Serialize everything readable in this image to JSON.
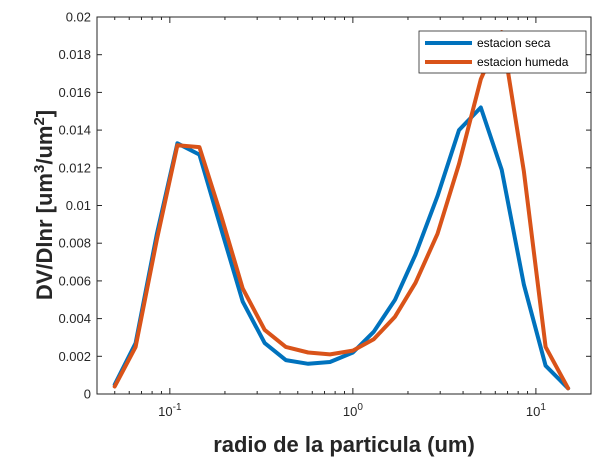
{
  "chart_data": {
    "type": "line",
    "title": "",
    "xlabel": "radio de la particula (um)",
    "ylabel_main": "DV/Dlnr [um",
    "ylabel_sup1": "3",
    "ylabel_mid": "/um",
    "ylabel_sup2": "2",
    "ylabel_end": "]",
    "xscale": "log",
    "xlim": [
      0.04,
      20
    ],
    "ylim": [
      0,
      0.02
    ],
    "grid": false,
    "legend_position": "top-right",
    "x_ticks": [
      {
        "value": 0.1,
        "base": "10",
        "exp": "-1"
      },
      {
        "value": 1,
        "base": "10",
        "exp": "0"
      },
      {
        "value": 10,
        "base": "10",
        "exp": "1"
      }
    ],
    "y_ticks": [
      {
        "value": 0,
        "label": "0"
      },
      {
        "value": 0.002,
        "label": "0.002"
      },
      {
        "value": 0.004,
        "label": "0.004"
      },
      {
        "value": 0.006,
        "label": "0.006"
      },
      {
        "value": 0.008,
        "label": "0.008"
      },
      {
        "value": 0.01,
        "label": "0.01"
      },
      {
        "value": 0.012,
        "label": "0.012"
      },
      {
        "value": 0.014,
        "label": "0.014"
      },
      {
        "value": 0.016,
        "label": "0.016"
      },
      {
        "value": 0.018,
        "label": "0.018"
      },
      {
        "value": 0.02,
        "label": "0.02"
      }
    ],
    "series": [
      {
        "name": "estacion seca",
        "color": "#0072bd",
        "x": [
          0.05,
          0.065,
          0.085,
          0.11,
          0.145,
          0.19,
          0.25,
          0.33,
          0.43,
          0.57,
          0.75,
          1.0,
          1.3,
          1.7,
          2.2,
          2.9,
          3.8,
          5.0,
          6.5,
          8.6,
          11.3,
          15.0
        ],
        "y": [
          0.0005,
          0.0027,
          0.0085,
          0.0133,
          0.0127,
          0.0088,
          0.0049,
          0.0027,
          0.0018,
          0.0016,
          0.0017,
          0.0022,
          0.0033,
          0.005,
          0.0074,
          0.0105,
          0.014,
          0.0152,
          0.0119,
          0.0058,
          0.0015,
          0.0003
        ]
      },
      {
        "name": "estacion humeda",
        "color": "#d95319",
        "x": [
          0.05,
          0.065,
          0.085,
          0.11,
          0.145,
          0.19,
          0.25,
          0.33,
          0.43,
          0.57,
          0.75,
          1.0,
          1.3,
          1.7,
          2.2,
          2.9,
          3.8,
          5.0,
          6.5,
          8.6,
          11.3,
          15.0
        ],
        "y": [
          0.0004,
          0.0025,
          0.0082,
          0.0132,
          0.0131,
          0.0095,
          0.0056,
          0.0034,
          0.0025,
          0.0022,
          0.0021,
          0.0023,
          0.0029,
          0.0041,
          0.0059,
          0.0085,
          0.0122,
          0.0167,
          0.0192,
          0.0118,
          0.0025,
          0.0003
        ]
      }
    ]
  }
}
